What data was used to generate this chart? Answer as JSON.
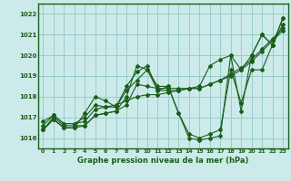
{
  "title": "Graphe pression niveau de la mer (hPa)",
  "bg_color": "#cceaea",
  "grid_color": "#99cccc",
  "line_color": "#1a5e1a",
  "xlim": [
    -0.5,
    23.5
  ],
  "ylim": [
    1015.5,
    1022.5
  ],
  "yticks": [
    1016,
    1017,
    1018,
    1019,
    1020,
    1021,
    1022
  ],
  "xticks": [
    0,
    1,
    2,
    3,
    4,
    5,
    6,
    7,
    8,
    9,
    10,
    11,
    12,
    13,
    14,
    15,
    16,
    17,
    18,
    19,
    20,
    21,
    22,
    23
  ],
  "series": [
    [
      1016.4,
      1017.0,
      1016.6,
      1016.6,
      1016.6,
      1017.1,
      1017.2,
      1017.3,
      1017.6,
      1018.6,
      1018.5,
      1018.4,
      1018.4,
      1018.4,
      1018.4,
      1018.4,
      1018.6,
      1018.8,
      1019.0,
      1019.3,
      1019.7,
      1020.2,
      1020.7,
      1021.2
    ],
    [
      1016.6,
      1017.1,
      1016.7,
      1016.7,
      1016.8,
      1017.4,
      1017.5,
      1017.6,
      1017.8,
      1018.0,
      1018.1,
      1018.1,
      1018.2,
      1018.3,
      1018.4,
      1018.4,
      1018.6,
      1018.8,
      1019.1,
      1019.4,
      1019.8,
      1020.3,
      1020.8,
      1021.3
    ],
    [
      1016.4,
      1016.9,
      1016.5,
      1016.5,
      1017.2,
      1018.0,
      1017.8,
      1017.5,
      1018.3,
      1018.8,
      1019.3,
      1018.3,
      1018.3,
      1018.3,
      1018.4,
      1018.5,
      1019.5,
      1019.8,
      1020.0,
      1019.3,
      1020.0,
      1021.0,
      1020.5,
      1021.8
    ],
    [
      1016.4,
      1016.9,
      1016.5,
      1016.5,
      1016.6,
      1017.1,
      1017.2,
      1017.3,
      1018.0,
      1019.5,
      1019.3,
      1018.5,
      1018.5,
      1017.2,
      1016.0,
      1015.9,
      1016.0,
      1016.1,
      1020.0,
      1017.3,
      1020.0,
      1021.0,
      1020.5,
      1021.8
    ],
    [
      1016.8,
      1017.1,
      1016.7,
      1016.7,
      1017.0,
      1017.6,
      1017.5,
      1017.5,
      1018.5,
      1019.2,
      1019.5,
      1018.3,
      1018.5,
      1017.2,
      1016.2,
      1016.0,
      1016.2,
      1016.4,
      1019.3,
      1017.7,
      1019.3,
      1019.3,
      1020.5,
      1021.5
    ]
  ]
}
